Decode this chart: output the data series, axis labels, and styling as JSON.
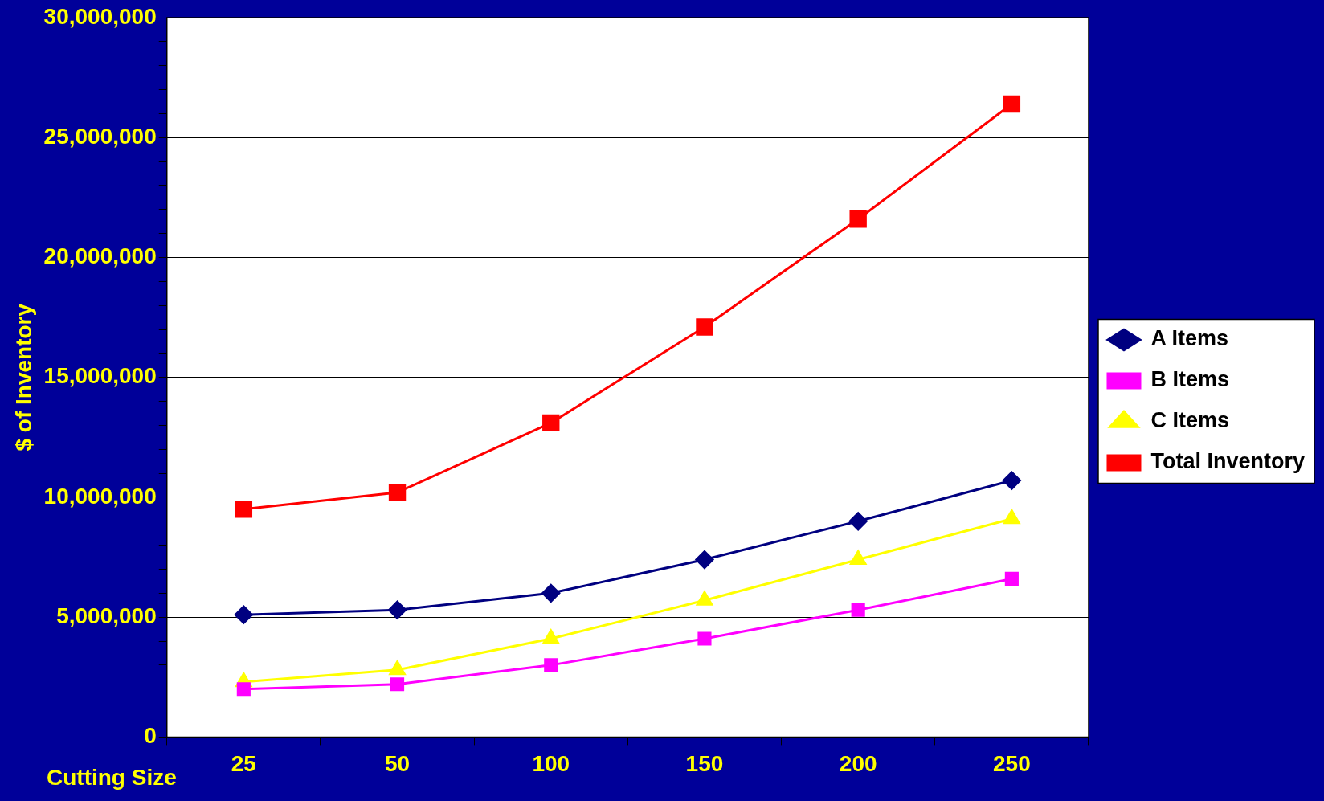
{
  "chart_data": {
    "type": "line",
    "xlabel": "Cutting Size",
    "ylabel": "$ of Inventory",
    "categories": [
      "25",
      "50",
      "100",
      "150",
      "200",
      "250"
    ],
    "series": [
      {
        "name": "A Items",
        "color": "#000080",
        "marker": "diamond",
        "values": [
          5100000,
          5300000,
          6000000,
          7400000,
          9000000,
          10700000
        ]
      },
      {
        "name": "B Items",
        "color": "#ff00ff",
        "marker": "square",
        "values": [
          2000000,
          2200000,
          3000000,
          4100000,
          5300000,
          6600000
        ]
      },
      {
        "name": "C Items",
        "color": "#ffff00",
        "marker": "triangle",
        "values": [
          2300000,
          2800000,
          4100000,
          5700000,
          7400000,
          9100000
        ]
      },
      {
        "name": "Total Inventory",
        "color": "#ff0000",
        "marker": "square",
        "values": [
          9500000,
          10200000,
          13100000,
          17100000,
          21600000,
          26400000
        ]
      }
    ],
    "ylim": [
      0,
      30000000
    ],
    "yticks": [
      {
        "value": 0,
        "label": "0"
      },
      {
        "value": 1000000,
        "label": null
      },
      {
        "value": 2000000,
        "label": null
      },
      {
        "value": 3000000,
        "label": null
      },
      {
        "value": 4000000,
        "label": null
      },
      {
        "value": 5000000,
        "label": "5,000,000"
      },
      {
        "value": 6000000,
        "label": null
      },
      {
        "value": 7000000,
        "label": null
      },
      {
        "value": 8000000,
        "label": null
      },
      {
        "value": 9000000,
        "label": null
      },
      {
        "value": 10000000,
        "label": "10,000,000"
      },
      {
        "value": 11000000,
        "label": null
      },
      {
        "value": 12000000,
        "label": null
      },
      {
        "value": 13000000,
        "label": null
      },
      {
        "value": 14000000,
        "label": null
      },
      {
        "value": 15000000,
        "label": "15,000,000"
      },
      {
        "value": 16000000,
        "label": null
      },
      {
        "value": 17000000,
        "label": null
      },
      {
        "value": 18000000,
        "label": null
      },
      {
        "value": 19000000,
        "label": null
      },
      {
        "value": 20000000,
        "label": "20,000,000"
      },
      {
        "value": 21000000,
        "label": null
      },
      {
        "value": 22000000,
        "label": null
      },
      {
        "value": 23000000,
        "label": null
      },
      {
        "value": 24000000,
        "label": null
      },
      {
        "value": 25000000,
        "label": "25,000,000"
      },
      {
        "value": 26000000,
        "label": null
      },
      {
        "value": 27000000,
        "label": null
      },
      {
        "value": 28000000,
        "label": null
      },
      {
        "value": 29000000,
        "label": null
      },
      {
        "value": 30000000,
        "label": "30,000,000"
      }
    ],
    "grid": "y",
    "legend": "right",
    "line_style": "solid"
  }
}
